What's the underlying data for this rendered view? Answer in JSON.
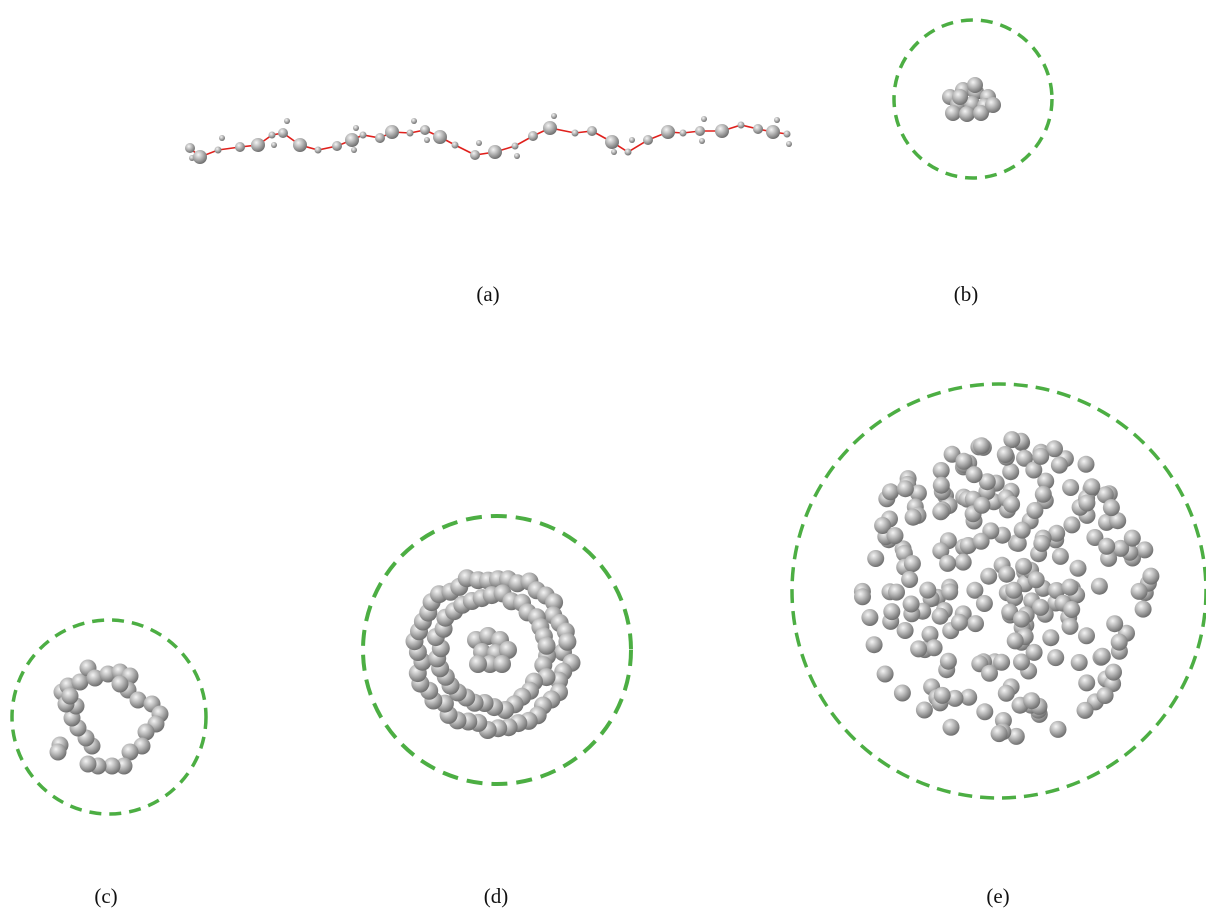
{
  "panels": {
    "a": {
      "label": "(a)"
    },
    "b": {
      "label": "(b)"
    },
    "c": {
      "label": "(c)"
    },
    "d": {
      "label": "(d)"
    },
    "e": {
      "label": "(e)"
    }
  },
  "colors": {
    "background": "#ffffff",
    "bead": "#a9a9a9",
    "bead_highlight": "#f2f2f2",
    "bead_shadow": "#6f6f6f",
    "bond": "#e0201c",
    "boundary": "#4cae43",
    "label": "#111111"
  }
}
